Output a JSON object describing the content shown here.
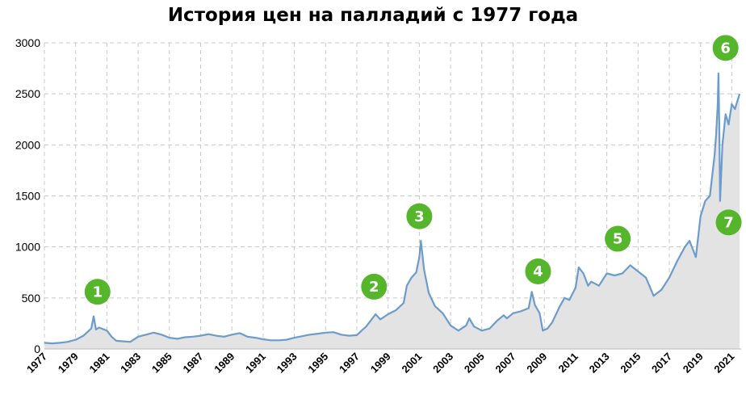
{
  "chart_data": {
    "type": "area",
    "title": "История цен на палладий с 1977 года",
    "xlabel": "",
    "ylabel": "",
    "xlim": [
      1977,
      2021.6
    ],
    "ylim": [
      0,
      3000
    ],
    "y_ticks": [
      "0",
      "500",
      "1000",
      "1500",
      "2000",
      "2500",
      "3000"
    ],
    "x_ticks": [
      "1977",
      "1979",
      "1981",
      "1983",
      "1985",
      "1987",
      "1989",
      "1991",
      "1993",
      "1995",
      "1997",
      "1999",
      "2001",
      "2003",
      "2005",
      "2007",
      "2009",
      "2011",
      "2013",
      "2015",
      "2017",
      "2019",
      "2021"
    ],
    "grid": true,
    "colors": {
      "line": "#6b9ccc",
      "fill": "#e3e3e3",
      "marker": "#55b52b",
      "grid": "#c8c8c8"
    },
    "series": [
      {
        "x": [
          1977.0,
          1977.5,
          1978.0,
          1978.5,
          1979.0,
          1979.5,
          1980.0,
          1980.15,
          1980.3,
          1980.5,
          1981.0,
          1981.3,
          1981.6,
          1982.0,
          1982.5,
          1983.0,
          1983.5,
          1984.0,
          1984.5,
          1985.0,
          1985.5,
          1986.0,
          1986.5,
          1987.0,
          1987.5,
          1988.0,
          1988.5,
          1989.0,
          1989.5,
          1990.0,
          1990.5,
          1991.0,
          1991.5,
          1992.0,
          1992.5,
          1993.0,
          1993.5,
          1994.0,
          1994.5,
          1995.0,
          1995.5,
          1996.0,
          1996.5,
          1997.0,
          1997.3,
          1997.6,
          1998.0,
          1998.2,
          1998.5,
          1999.0,
          1999.5,
          2000.0,
          2000.2,
          2000.5,
          2000.8,
          2001.0,
          2001.1,
          2001.3,
          2001.6,
          2002.0,
          2002.5,
          2003.0,
          2003.5,
          2004.0,
          2004.2,
          2004.5,
          2005.0,
          2005.5,
          2006.0,
          2006.4,
          2006.6,
          2007.0,
          2007.5,
          2008.0,
          2008.2,
          2008.4,
          2008.7,
          2008.9,
          2009.2,
          2009.5,
          2010.0,
          2010.3,
          2010.6,
          2011.0,
          2011.2,
          2011.5,
          2011.8,
          2012.0,
          2012.5,
          2013.0,
          2013.5,
          2014.0,
          2014.5,
          2015.0,
          2015.5,
          2016.0,
          2016.5,
          2017.0,
          2017.5,
          2018.0,
          2018.3,
          2018.7,
          2019.0,
          2019.3,
          2019.6,
          2019.9,
          2020.0,
          2020.1,
          2020.15,
          2020.2,
          2020.25,
          2020.4,
          2020.6,
          2020.8,
          2021.0,
          2021.2,
          2021.4,
          2021.5
        ],
        "y": [
          60,
          55,
          60,
          70,
          90,
          130,
          200,
          320,
          190,
          210,
          180,
          120,
          80,
          75,
          70,
          120,
          140,
          160,
          140,
          110,
          100,
          115,
          120,
          130,
          145,
          130,
          120,
          140,
          155,
          120,
          110,
          95,
          85,
          85,
          90,
          110,
          125,
          140,
          150,
          160,
          165,
          140,
          130,
          135,
          180,
          220,
          300,
          340,
          290,
          340,
          380,
          450,
          620,
          700,
          750,
          900,
          1060,
          780,
          550,
          420,
          350,
          230,
          180,
          230,
          300,
          220,
          180,
          200,
          280,
          330,
          300,
          350,
          370,
          400,
          560,
          430,
          350,
          180,
          200,
          260,
          420,
          500,
          480,
          600,
          800,
          740,
          620,
          660,
          620,
          740,
          720,
          740,
          820,
          760,
          700,
          520,
          580,
          700,
          860,
          1000,
          1060,
          900,
          1300,
          1450,
          1500,
          1900,
          2100,
          2400,
          2700,
          2200,
          1450,
          2000,
          2300,
          2200,
          2400,
          2350,
          2450,
          2500
        ]
      }
    ],
    "markers": [
      {
        "label": "1",
        "x": 1980.4,
        "y": 560
      },
      {
        "label": "2",
        "x": 1998.1,
        "y": 610
      },
      {
        "label": "3",
        "x": 2001.0,
        "y": 1300
      },
      {
        "label": "4",
        "x": 2008.6,
        "y": 760
      },
      {
        "label": "5",
        "x": 2013.7,
        "y": 1080
      },
      {
        "label": "6",
        "x": 2020.6,
        "y": 2950
      },
      {
        "label": "7",
        "x": 2020.8,
        "y": 1240
      }
    ]
  }
}
